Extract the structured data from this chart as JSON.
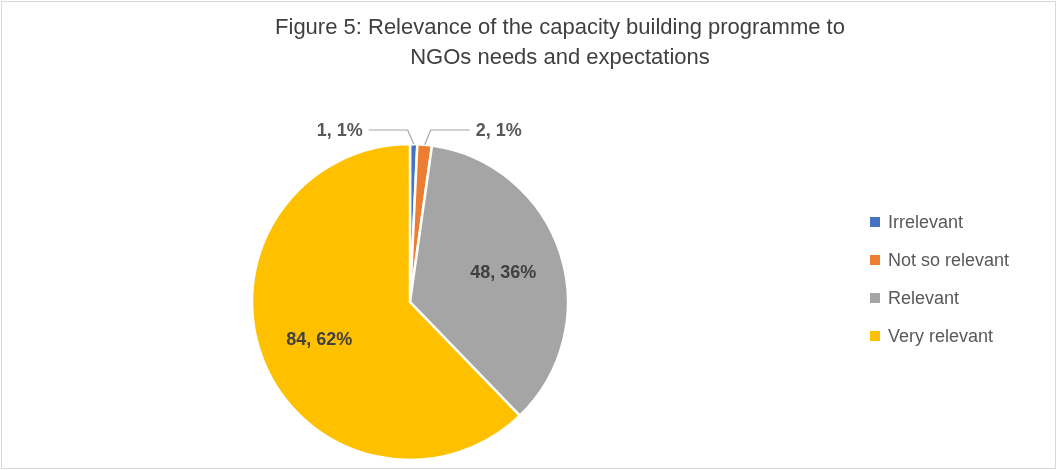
{
  "chart_data": {
    "type": "pie",
    "title": "Figure 5: Relevance of the capacity building programme to NGOs needs and expectations",
    "categories": [
      "Irrelevant",
      "Not so relevant",
      "Relevant",
      "Very relevant"
    ],
    "values": [
      1,
      2,
      48,
      84
    ],
    "colors": [
      "#4472c4",
      "#ed7d31",
      "#a5a5a5",
      "#ffc000"
    ],
    "value_labels": [
      "1, 1%",
      "2, 1%",
      "48, 36%",
      "84, 62%"
    ],
    "legend": "right"
  }
}
